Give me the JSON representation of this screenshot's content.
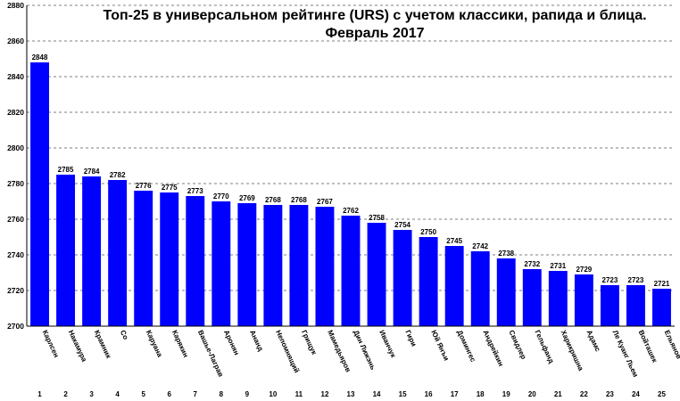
{
  "chart_data": {
    "type": "bar",
    "title": "Топ-25 в универсальном рейтинге (URS) с учетом классики, рапида и блица.",
    "subtitle": "Февраль 2017",
    "xlabel": "",
    "ylabel": "",
    "ylim": [
      2700,
      2880
    ],
    "yticks": [
      2700,
      2720,
      2740,
      2760,
      2780,
      2800,
      2820,
      2840,
      2860,
      2880
    ],
    "grid": true,
    "bar_color": "#0000ff",
    "categories": [
      "Карлсен",
      "Накамура",
      "Крамник",
      "Со",
      "Каруана",
      "Карякин",
      "Вашье-Лаграв",
      "Аронян",
      "Ананд",
      "Непомнящий",
      "Грищук",
      "Мамедьяров",
      "Дин Лижэнь",
      "Иванчук",
      "Гири",
      "Юй Янъи",
      "Домингес",
      "Андрейкин",
      "Свидлер",
      "Гельфанд",
      "Харикришна",
      "Адамс",
      "Ле Куанг Льем",
      "Войташек",
      "Ельянов"
    ],
    "ranks": [
      "1",
      "2",
      "3",
      "4",
      "5",
      "6",
      "7",
      "8",
      "9",
      "10",
      "11",
      "12",
      "13",
      "14",
      "15",
      "16",
      "17",
      "18",
      "19",
      "20",
      "21",
      "22",
      "23",
      "24",
      "25"
    ],
    "values": [
      2848,
      2785,
      2784,
      2782,
      2776,
      2775,
      2773,
      2770,
      2769,
      2768,
      2768,
      2767,
      2762,
      2758,
      2754,
      2750,
      2745,
      2742,
      2738,
      2732,
      2731,
      2729,
      2723,
      2723,
      2721
    ]
  }
}
